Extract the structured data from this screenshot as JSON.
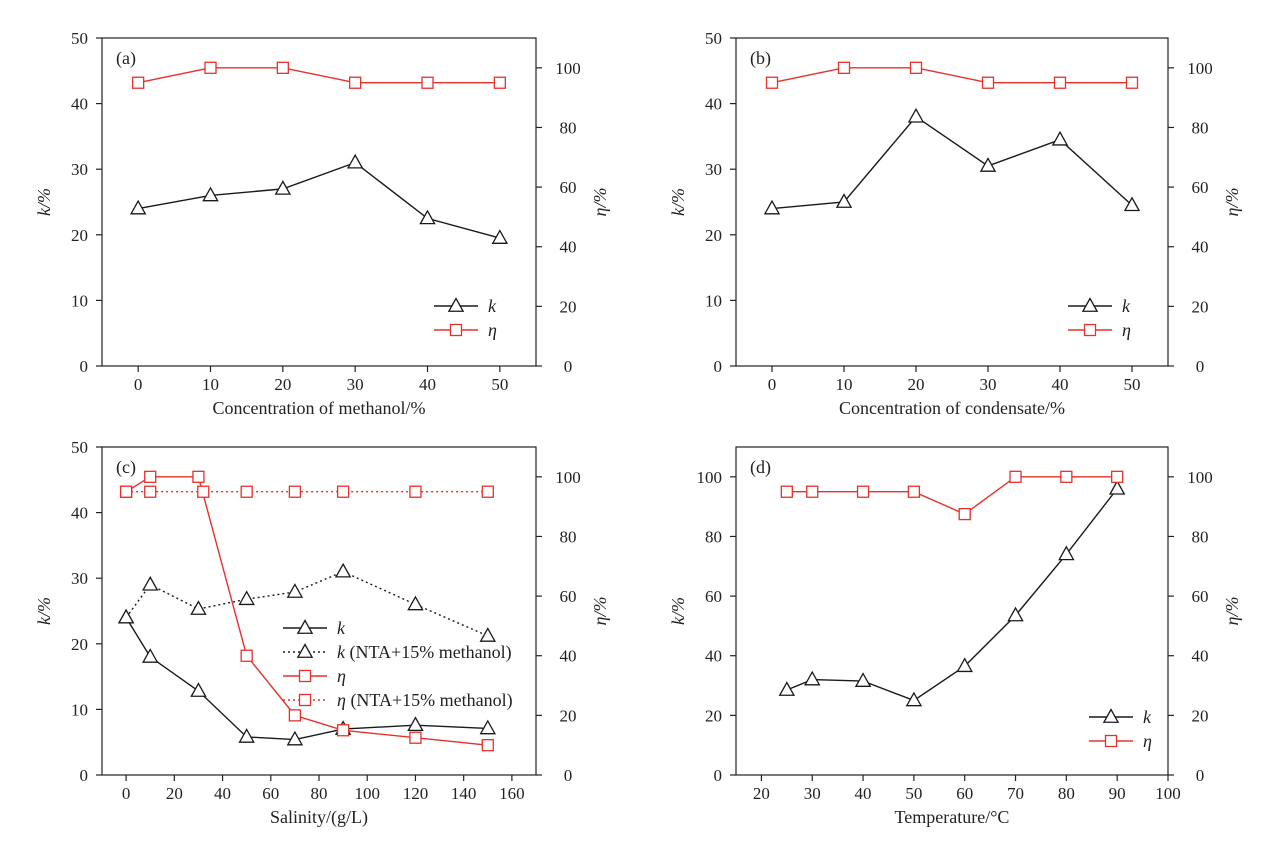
{
  "chart_data": [
    {
      "panel": "(a)",
      "type": "line",
      "xlabel": "Concentration of methanol/%",
      "ylabel_left": "k/%",
      "ylabel_right": "η/%",
      "xlim": [
        -5,
        55
      ],
      "xticks": [
        0,
        10,
        20,
        30,
        40,
        50
      ],
      "ylim_left": [
        0,
        50
      ],
      "yticks_left": [
        0,
        10,
        20,
        30,
        40,
        50
      ],
      "ylim_right": [
        0,
        110
      ],
      "yticks_right": [
        0,
        20,
        40,
        60,
        80,
        100
      ],
      "legend_position": "bottom-right",
      "series": [
        {
          "name": "k",
          "axis": "left",
          "marker": "triangle",
          "line": "solid",
          "color": "#1a1a1a",
          "x": [
            0,
            10,
            20,
            30,
            40,
            50
          ],
          "y": [
            24,
            26,
            27,
            31,
            22.5,
            19.5
          ]
        },
        {
          "name": "η",
          "axis": "right",
          "marker": "square",
          "line": "solid",
          "color": "#e8302a",
          "x": [
            0,
            10,
            20,
            30,
            40,
            50
          ],
          "y": [
            95,
            100,
            100,
            95,
            95,
            95
          ]
        }
      ]
    },
    {
      "panel": "(b)",
      "type": "line",
      "xlabel": "Concentration of condensate/%",
      "ylabel_left": "k/%",
      "ylabel_right": "η/%",
      "xlim": [
        -5,
        55
      ],
      "xticks": [
        0,
        10,
        20,
        30,
        40,
        50
      ],
      "ylim_left": [
        0,
        50
      ],
      "yticks_left": [
        0,
        10,
        20,
        30,
        40,
        50
      ],
      "ylim_right": [
        0,
        110
      ],
      "yticks_right": [
        0,
        20,
        40,
        60,
        80,
        100
      ],
      "legend_position": "bottom-right",
      "series": [
        {
          "name": "k",
          "axis": "left",
          "marker": "triangle",
          "line": "solid",
          "color": "#1a1a1a",
          "x": [
            0,
            10,
            20,
            30,
            40,
            50
          ],
          "y": [
            24,
            25,
            38,
            30.5,
            34.5,
            24.5
          ]
        },
        {
          "name": "η",
          "axis": "right",
          "marker": "square",
          "line": "solid",
          "color": "#e8302a",
          "x": [
            0,
            10,
            20,
            30,
            40,
            50
          ],
          "y": [
            95,
            100,
            100,
            95,
            95,
            95
          ]
        }
      ]
    },
    {
      "panel": "(c)",
      "type": "line",
      "xlabel": "Salinity/(g/L)",
      "ylabel_left": "k/%",
      "ylabel_right": "η/%",
      "xlim": [
        -10,
        170
      ],
      "xticks": [
        0,
        20,
        40,
        60,
        80,
        100,
        120,
        140,
        160
      ],
      "ylim_left": [
        0,
        50
      ],
      "yticks_left": [
        0,
        10,
        20,
        30,
        40,
        50
      ],
      "ylim_right": [
        0,
        110
      ],
      "yticks_right": [
        0,
        20,
        40,
        60,
        80,
        100
      ],
      "legend_position": "center-right",
      "series": [
        {
          "name": "k",
          "axis": "left",
          "marker": "triangle",
          "line": "solid",
          "color": "#1a1a1a",
          "x": [
            0,
            10,
            30,
            50,
            70,
            90,
            120,
            150
          ],
          "y": [
            24,
            18,
            12.8,
            5.8,
            5.4,
            7,
            7.6,
            7.1
          ]
        },
        {
          "name": "k (NTA+15% methanol)",
          "axis": "left",
          "marker": "triangle",
          "line": "dotted",
          "color": "#1a1a1a",
          "x": [
            0,
            10,
            30,
            50,
            70,
            90,
            120,
            150
          ],
          "y": [
            24,
            29,
            25.3,
            26.8,
            27.9,
            31,
            26,
            21.2
          ]
        },
        {
          "name": "η",
          "axis": "right",
          "marker": "square",
          "line": "solid",
          "color": "#e8302a",
          "x": [
            0,
            10,
            30,
            50,
            70,
            90,
            120,
            150
          ],
          "y": [
            95,
            100,
            100,
            40,
            20,
            15,
            12.5,
            10
          ]
        },
        {
          "name": "η (NTA+15% methanol)",
          "axis": "right",
          "marker": "square",
          "line": "dotted",
          "color": "#e8302a",
          "x": [
            0,
            10,
            32,
            50,
            70,
            90,
            120,
            150
          ],
          "y": [
            95,
            95,
            95,
            95,
            95,
            95,
            95,
            95
          ]
        }
      ]
    },
    {
      "panel": "(d)",
      "type": "line",
      "xlabel": "Temperature/°C",
      "ylabel_left": "k/%",
      "ylabel_right": "η/%",
      "xlim": [
        15,
        100
      ],
      "xticks": [
        20,
        30,
        40,
        50,
        60,
        70,
        80,
        90,
        100
      ],
      "ylim_left": [
        0,
        110
      ],
      "yticks_left": [
        0,
        20,
        40,
        60,
        80,
        100
      ],
      "ylim_right": [
        0,
        110
      ],
      "yticks_right": [
        0,
        20,
        40,
        60,
        80,
        100
      ],
      "legend_position": "bottom-right",
      "series": [
        {
          "name": "k",
          "axis": "left",
          "marker": "triangle",
          "line": "solid",
          "color": "#1a1a1a",
          "x": [
            25,
            30,
            40,
            50,
            60,
            70,
            80,
            90
          ],
          "y": [
            28.5,
            32,
            31.5,
            25,
            36.5,
            53.5,
            74,
            96
          ]
        },
        {
          "name": "η",
          "axis": "right",
          "marker": "square",
          "line": "solid",
          "color": "#e8302a",
          "x": [
            25,
            30,
            40,
            50,
            60,
            70,
            80,
            90
          ],
          "y": [
            95,
            95,
            95,
            95,
            87.5,
            100,
            100,
            100
          ]
        }
      ]
    }
  ]
}
